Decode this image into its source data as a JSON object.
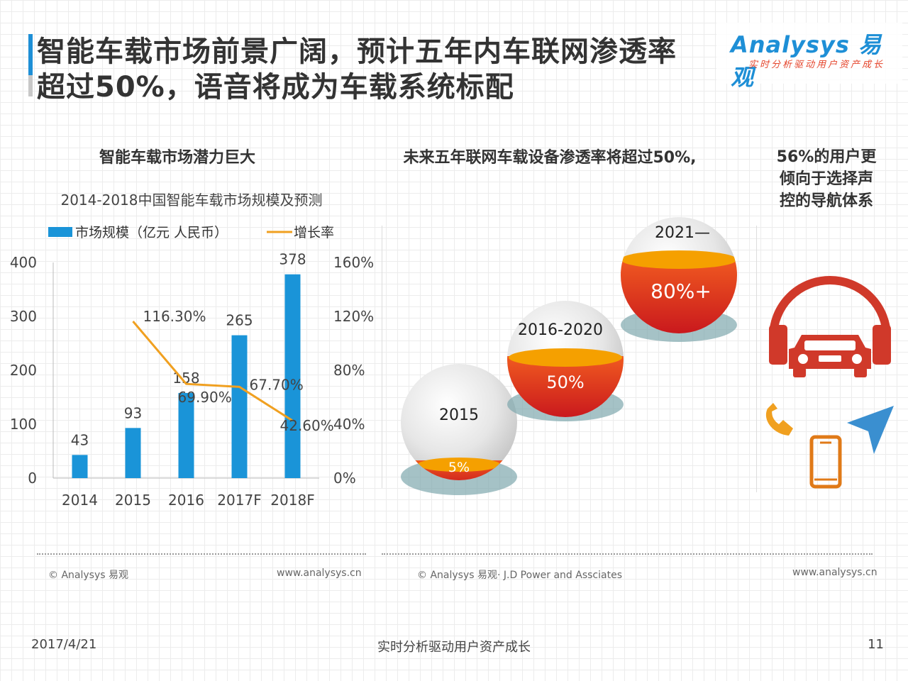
{
  "header": {
    "title_line1": "智能车载市场前景广阔，预计五年内车联网渗透率",
    "title_line2": "超过50%，语音将成为车载系统标配",
    "logo_text": "Analysys 易观",
    "logo_tagline": "实时分析驱动用户资产成长",
    "accent_color": "#1e8fd6"
  },
  "left": {
    "section_title": "智能车载市场潜力巨大",
    "credit": "© Analysys 易观",
    "url": "www.analysys.cn"
  },
  "middle": {
    "section_title": "未来五年联网车载设备渗透率将超过50%,",
    "credit": "© Analysys 易观· J.D Power and Assciates",
    "spheres": [
      {
        "label": "2015",
        "value": "5%",
        "fill_fraction": 0.05
      },
      {
        "label": "2016-2020",
        "value": "50%",
        "fill_fraction": 0.5
      },
      {
        "label": "2021—",
        "value": "80%+",
        "fill_fraction": 0.8
      }
    ]
  },
  "right": {
    "section_title_line1": "56%的用户更",
    "section_title_line2": "倾向于选择声",
    "section_title_line3": "控的导航体系",
    "url": "www.analysys.cn",
    "icons": [
      "car-headphones-icon",
      "phone-handset-icon",
      "navigation-arrow-icon",
      "smartphone-icon"
    ]
  },
  "footer": {
    "date": "2017/4/21",
    "slogan": "实时分析驱动用户资产成长",
    "page": "11"
  },
  "chart_data": {
    "type": "bar",
    "title": "2014-2018中国智能车载市场规模及预测",
    "categories": [
      "2014",
      "2015",
      "2016",
      "2017F",
      "2018F"
    ],
    "series": [
      {
        "name": "市场规模（亿元 人民币）",
        "type": "bar",
        "axis": "left",
        "color": "#1a94d8",
        "values": [
          43,
          93,
          158,
          265,
          378
        ]
      },
      {
        "name": "增长率",
        "type": "line",
        "axis": "right",
        "color": "#f0a020",
        "values": [
          null,
          116.3,
          69.9,
          67.7,
          42.6
        ],
        "labels": [
          "",
          "116.30%",
          "69.90%",
          "67.70%",
          "42.60%"
        ]
      }
    ],
    "y_left": {
      "ylim": [
        0,
        400
      ],
      "ticks": [
        "0",
        "100",
        "200",
        "300",
        "400"
      ]
    },
    "y_right": {
      "ylim": [
        0,
        160
      ],
      "ticks": [
        "0%",
        "40%",
        "80%",
        "120%",
        "160%"
      ]
    },
    "legend": "top-left"
  }
}
